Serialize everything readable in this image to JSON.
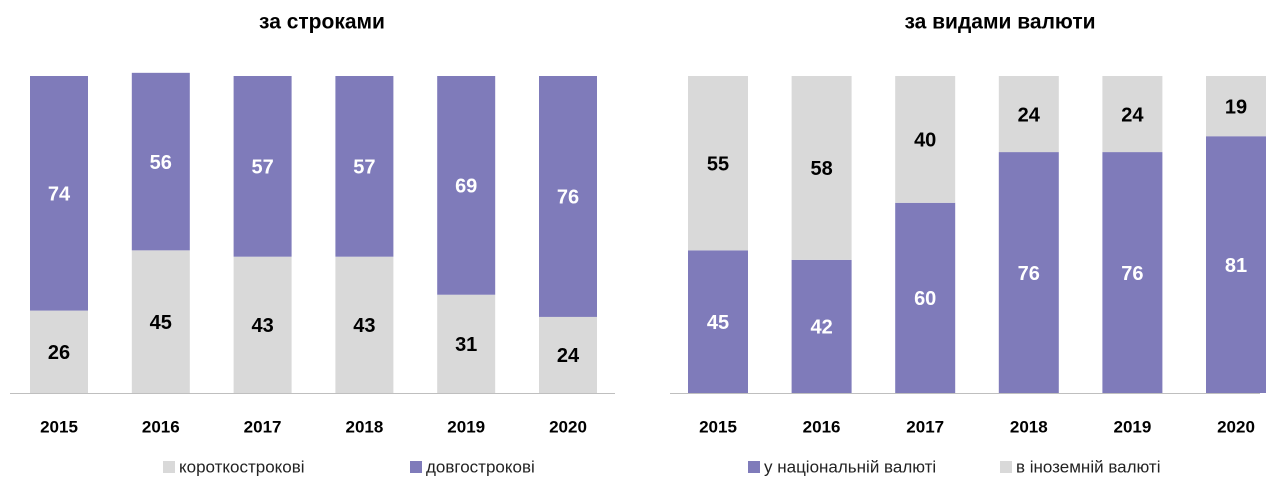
{
  "chart_data": [
    {
      "type": "bar",
      "stacked": true,
      "title": "за строками",
      "categories": [
        "2015",
        "2016",
        "2017",
        "2018",
        "2019",
        "2020"
      ],
      "series": [
        {
          "name": "короткострокові",
          "color": "#d9d9d9",
          "label_color": "#000000",
          "values": [
            26,
            45,
            43,
            43,
            31,
            24
          ]
        },
        {
          "name": "довгострокові",
          "color": "#7f7bba",
          "label_color": "#ffffff",
          "values": [
            74,
            56,
            57,
            57,
            69,
            76
          ]
        }
      ],
      "ylim": [
        0,
        100
      ]
    },
    {
      "type": "bar",
      "stacked": true,
      "title": "за видами валюти",
      "categories": [
        "2015",
        "2016",
        "2017",
        "2018",
        "2019",
        "2020"
      ],
      "series": [
        {
          "name": "у національній валюті",
          "color": "#7f7bba",
          "label_color": "#ffffff",
          "values": [
            45,
            42,
            60,
            76,
            76,
            81
          ]
        },
        {
          "name": "в іноземній валюті",
          "color": "#d9d9d9",
          "label_color": "#000000",
          "values": [
            55,
            58,
            40,
            24,
            24,
            19
          ]
        }
      ],
      "ylim": [
        0,
        100
      ]
    }
  ]
}
